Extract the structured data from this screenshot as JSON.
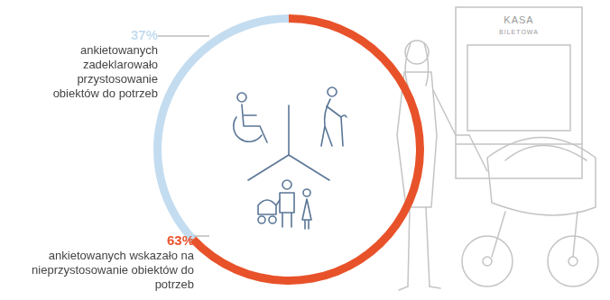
{
  "chart_data": {
    "type": "doughnut",
    "categories": [
      "ankietowanych wskazało na nieprzystosowanie obiektów do potrzeb",
      "ankietowanych zadeklarowało przystosowanie obiektów do potrzeb"
    ],
    "values": [
      63,
      37
    ],
    "value_labels": [
      "63%",
      "37%"
    ],
    "colors": [
      "#e8522a",
      "#c3dcf0"
    ],
    "data_labels": true
  },
  "illustration": {
    "sign": [
      "KASA",
      "BILETOWA"
    ]
  }
}
